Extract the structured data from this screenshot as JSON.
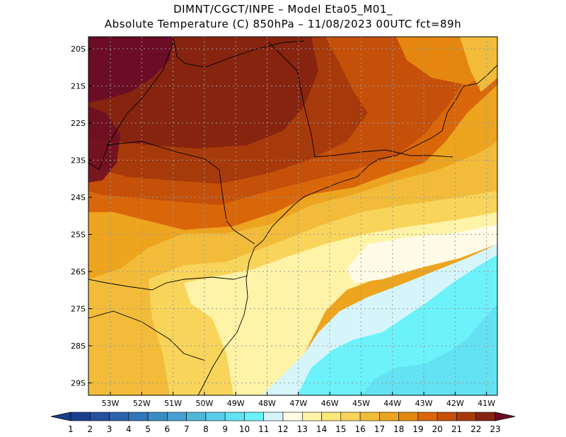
{
  "title": {
    "line1": "DIMNT/CGCT/INPE –  Model Eta05_M01_",
    "line2": "Absolute Temperature (C) 850hPa –  11/08/2023 00UTC fct=89h"
  },
  "axes": {
    "lat_labels": [
      "20S",
      "21S",
      "22S",
      "23S",
      "24S",
      "25S",
      "26S",
      "27S",
      "28S",
      "29S"
    ],
    "lon_labels": [
      "53W",
      "52W",
      "51W",
      "50W",
      "49W",
      "48W",
      "47W",
      "46W",
      "45W",
      "44W",
      "43W",
      "42W",
      "41W"
    ]
  },
  "colorbar": {
    "labels": [
      "1",
      "2",
      "3",
      "4",
      "5",
      "6",
      "7",
      "8",
      "9",
      "10",
      "11",
      "12",
      "13",
      "14",
      "15",
      "16",
      "17",
      "18",
      "19",
      "20",
      "21",
      "22",
      "23"
    ],
    "colors": [
      "#1a3f8f",
      "#2450a0",
      "#2b62ad",
      "#3277b8",
      "#3b8cc4",
      "#45a0d0",
      "#4fb6dc",
      "#58cce8",
      "#62e2f2",
      "#6cf2fa",
      "#d6f5fb",
      "#fffbe6",
      "#fff3a8",
      "#fde67a",
      "#f8d45a",
      "#f2bc3a",
      "#eda41e",
      "#e5860e",
      "#d9670a",
      "#c5500a",
      "#a73a0a",
      "#862410",
      "#6b0d25"
    ]
  },
  "map": {
    "colors": {
      "darkmaroon": "#6b0d25",
      "maroon": "#862410",
      "brown": "#a73a0a",
      "rust": "#c5500a",
      "orange": "#e5860e",
      "amber": "#f2bc3a",
      "yellow": "#f8d45a",
      "paleyellow": "#fff3a8",
      "cream": "#fffbe6",
      "icy": "#d6f5fb",
      "cyan": "#6cf2fa",
      "aqua": "#62e2f2"
    }
  }
}
